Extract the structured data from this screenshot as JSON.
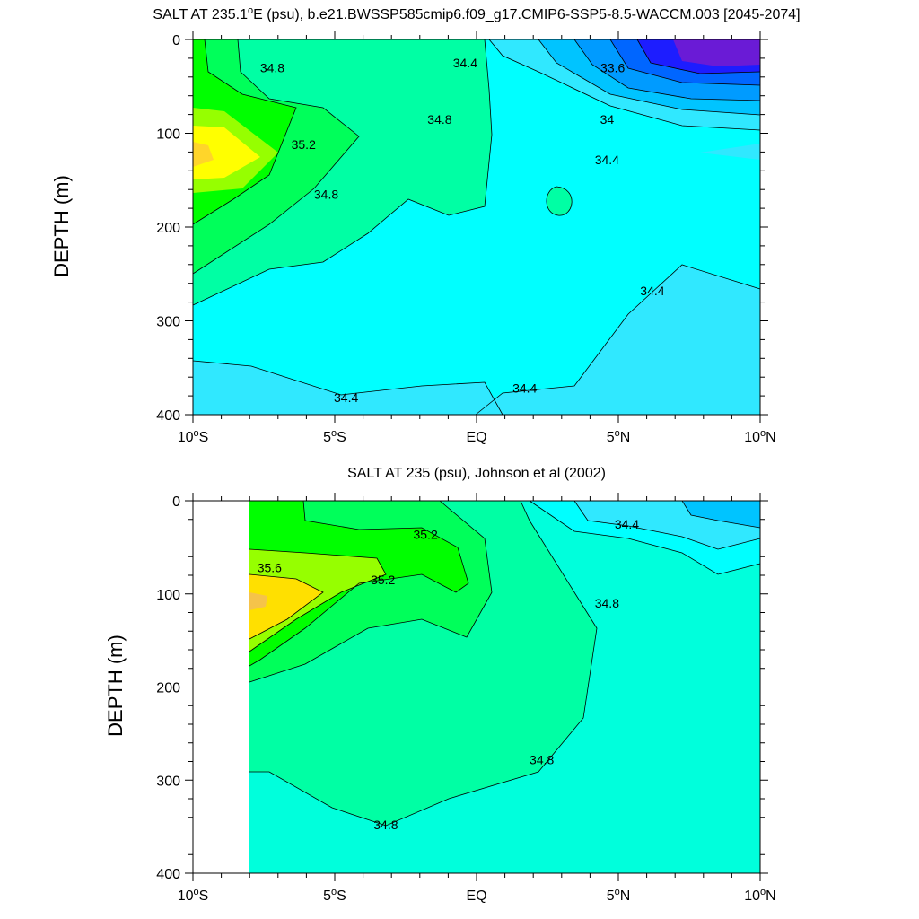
{
  "chart_data": [
    {
      "type": "contour",
      "title": "SALT AT 235.1°E (psu), b.e21.BWSSP585cmip6.f09_g17.CMIP6-SSP5-8.5-WACCM.003 [2045-2074]",
      "title_main": "SALT AT 235.1",
      "title_sup": "o",
      "title_rest": "E (psu), b.e21.BWSSP585cmip6.f09_g17.CMIP6-SSP5-8.5-WACCM.003 [2045-2074]",
      "ylabel": "DEPTH (m)",
      "xlim": [
        -10,
        10
      ],
      "ylim": [
        0,
        400
      ],
      "y_reversed": true,
      "x_ticks": [
        {
          "value": -10,
          "num": "10",
          "sup": "o",
          "hemi": "S"
        },
        {
          "value": -5,
          "num": "5",
          "sup": "o",
          "hemi": "S"
        },
        {
          "value": 0,
          "num": "EQ",
          "sup": "",
          "hemi": ""
        },
        {
          "value": 5,
          "num": "5",
          "sup": "o",
          "hemi": "N"
        },
        {
          "value": 10,
          "num": "10",
          "sup": "o",
          "hemi": "N"
        }
      ],
      "y_ticks": [
        0,
        100,
        200,
        300,
        400
      ],
      "contour_interval": 0.2,
      "levels": [
        {
          "value": 33.6,
          "color": "#1d1dff"
        },
        {
          "value": 34.0,
          "color": "#009bff"
        },
        {
          "value": 34.4,
          "color": "#00ffff"
        },
        {
          "value": 34.8,
          "color": "#00ffa4"
        },
        {
          "value": 35.2,
          "color": "#00ff00"
        },
        {
          "value": 35.6,
          "color": "#ffff00"
        }
      ],
      "contour_labels": [
        {
          "text": "34.8",
          "x": -7.2,
          "y": 30
        },
        {
          "text": "34.8",
          "x": -1.3,
          "y": 85
        },
        {
          "text": "35.2",
          "x": -6.1,
          "y": 112
        },
        {
          "text": "34.8",
          "x": -5.3,
          "y": 165
        },
        {
          "text": "34.4",
          "x": -0.4,
          "y": 25
        },
        {
          "text": "33.6",
          "x": 4.8,
          "y": 30
        },
        {
          "text": "34",
          "x": 4.6,
          "y": 85
        },
        {
          "text": "34.4",
          "x": 4.6,
          "y": 128
        },
        {
          "text": "34.4",
          "x": 6.2,
          "y": 268
        },
        {
          "text": "34.4",
          "x": -4.6,
          "y": 382
        },
        {
          "text": "34.4",
          "x": 1.7,
          "y": 372
        }
      ]
    },
    {
      "type": "contour",
      "title": "SALT AT 235 (psu), Johnson et al (2002)",
      "ylabel": "DEPTH (m)",
      "xlim": [
        -10,
        10
      ],
      "ylim": [
        0,
        400
      ],
      "y_reversed": true,
      "data_xlim": [
        -8,
        10
      ],
      "x_ticks": [
        {
          "value": -10,
          "num": "10",
          "sup": "o",
          "hemi": "S"
        },
        {
          "value": -5,
          "num": "5",
          "sup": "o",
          "hemi": "S"
        },
        {
          "value": 0,
          "num": "EQ",
          "sup": "",
          "hemi": ""
        },
        {
          "value": 5,
          "num": "5",
          "sup": "o",
          "hemi": "N"
        },
        {
          "value": 10,
          "num": "10",
          "sup": "o",
          "hemi": "N"
        }
      ],
      "y_ticks": [
        0,
        100,
        200,
        300,
        400
      ],
      "contour_interval": 0.2,
      "levels": [
        {
          "value": 34.4,
          "color": "#00ffff"
        },
        {
          "value": 34.8,
          "color": "#00ffa4"
        },
        {
          "value": 35.2,
          "color": "#00ff00"
        },
        {
          "value": 35.6,
          "color": "#ffff00"
        }
      ],
      "contour_labels": [
        {
          "text": "35.6",
          "x": -7.3,
          "y": 72
        },
        {
          "text": "35.2",
          "x": -1.8,
          "y": 36
        },
        {
          "text": "35.2",
          "x": -3.3,
          "y": 85
        },
        {
          "text": "34.4",
          "x": 5.3,
          "y": 25
        },
        {
          "text": "34.8",
          "x": 4.6,
          "y": 110
        },
        {
          "text": "34.8",
          "x": 2.3,
          "y": 278
        },
        {
          "text": "34.8",
          "x": -3.2,
          "y": 348
        }
      ]
    }
  ]
}
